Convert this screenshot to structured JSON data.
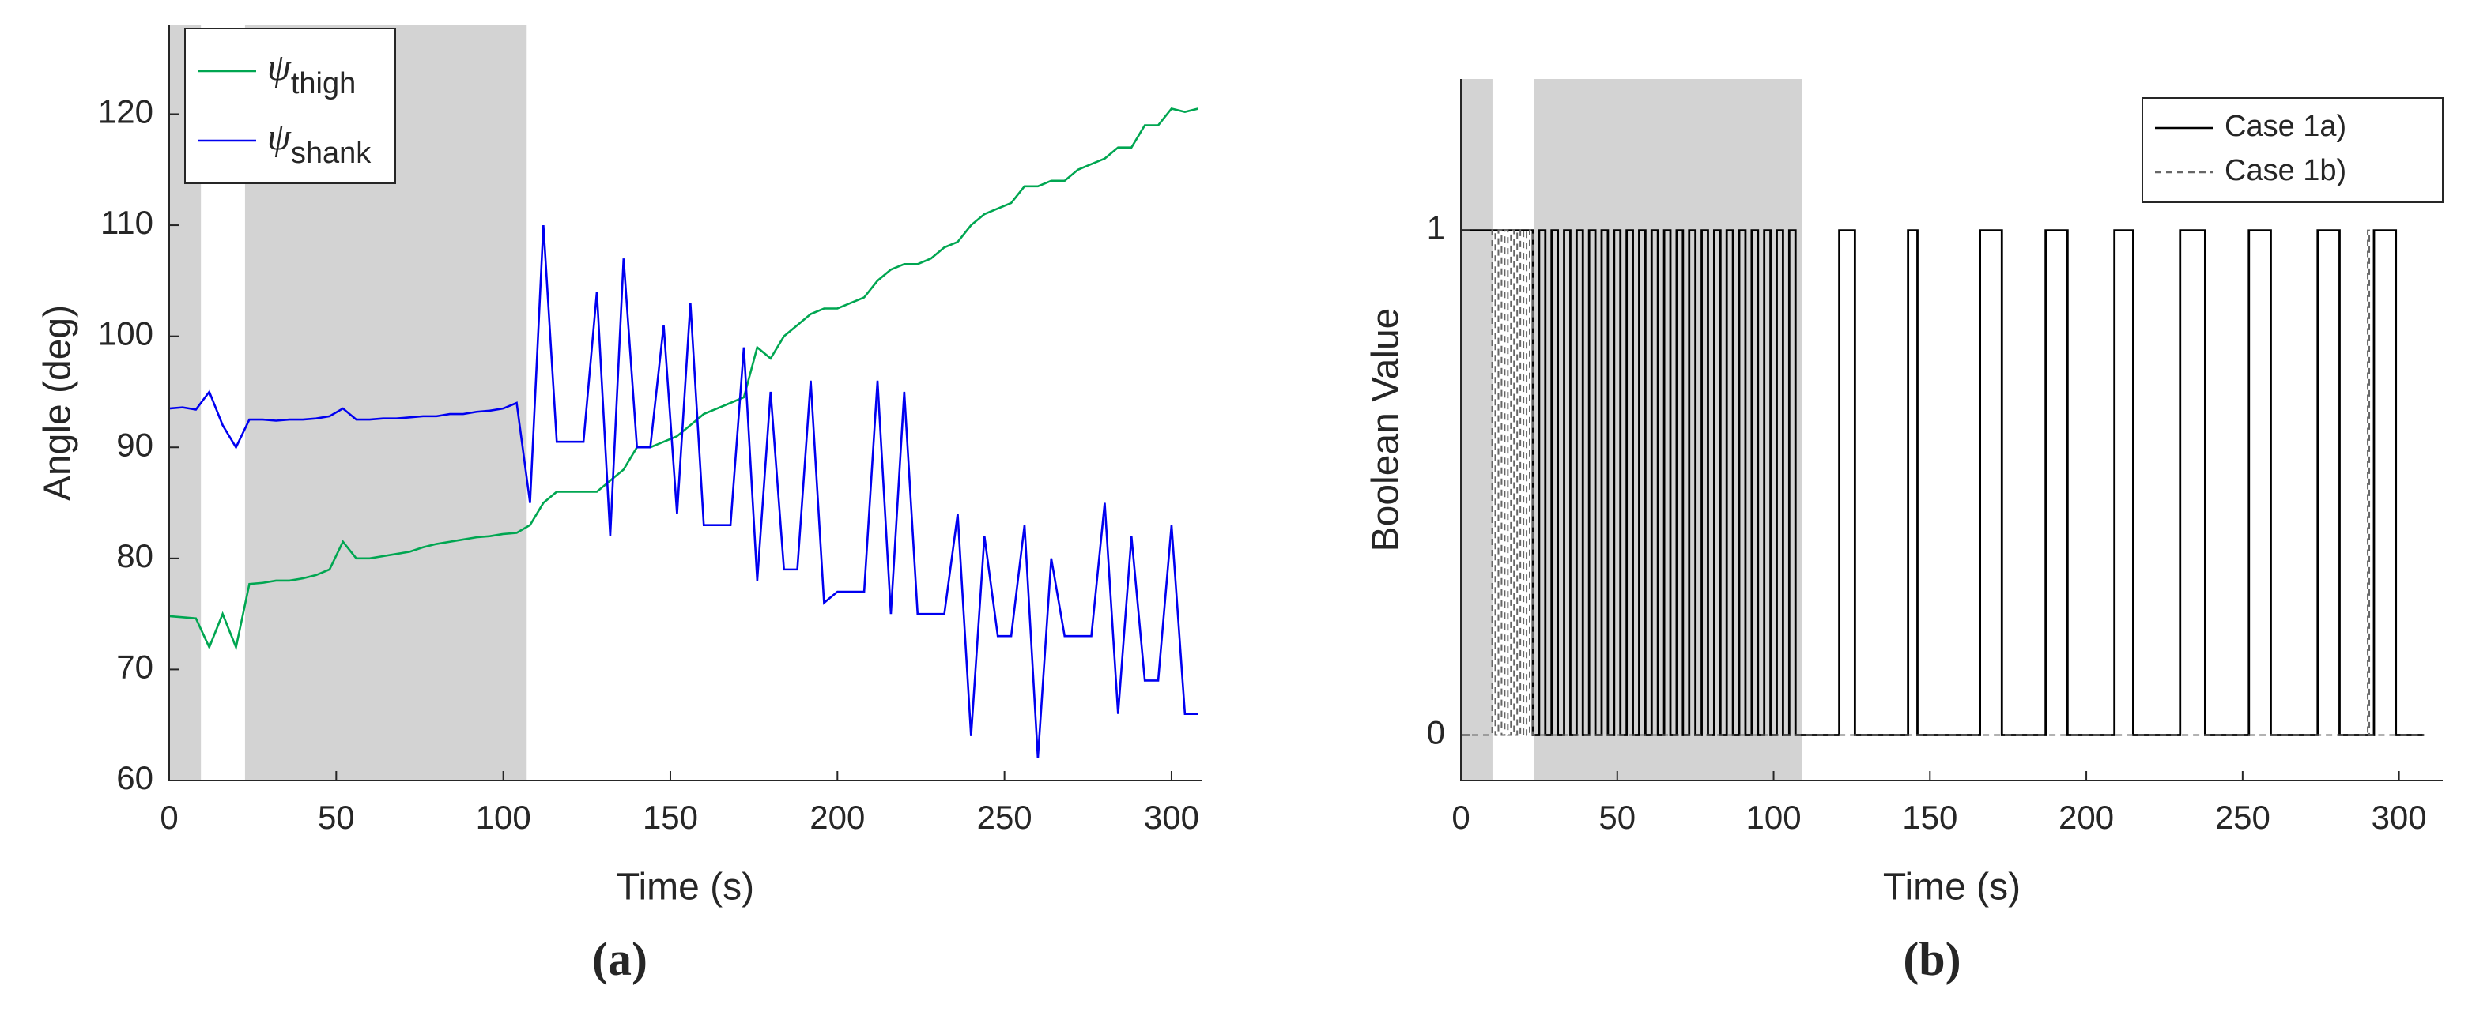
{
  "chart_data": [
    {
      "type": "line",
      "caption": "(a)",
      "xlabel": "Time (s)",
      "ylabel": "Angle (deg)",
      "x": [
        0,
        4,
        8,
        12,
        16,
        20,
        24,
        28,
        32,
        36,
        40,
        44,
        48,
        52,
        56,
        60,
        64,
        68,
        72,
        76,
        80,
        84,
        88,
        92,
        96,
        100,
        104,
        108,
        112,
        116,
        120,
        124,
        128,
        132,
        136,
        140,
        144,
        148,
        152,
        156,
        160,
        164,
        168,
        172,
        176,
        180,
        184,
        188,
        192,
        196,
        200,
        204,
        208,
        212,
        216,
        220,
        224,
        228,
        232,
        236,
        240,
        244,
        248,
        252,
        256,
        260,
        264,
        268,
        272,
        276,
        280,
        284,
        288,
        292,
        296,
        300,
        304,
        308
      ],
      "xlim": [
        0,
        309
      ],
      "xticks": [
        0,
        50,
        100,
        150,
        200,
        250,
        300
      ],
      "ylim": [
        60,
        128
      ],
      "yticks": [
        60,
        70,
        80,
        90,
        100,
        110,
        120
      ],
      "shaded_regions": [
        [
          0,
          9.5
        ],
        [
          22.7,
          107
        ]
      ],
      "shade_color": "#d3d3d3",
      "legend": "upper left",
      "series": [
        {
          "name": "ψthigh",
          "color": "#00a651",
          "values": [
            74.8,
            74.7,
            74.6,
            72,
            75,
            72,
            77.7,
            77.8,
            78,
            78,
            78.2,
            78.5,
            79,
            81.5,
            80,
            80,
            80.2,
            80.4,
            80.6,
            81,
            81.3,
            81.5,
            81.7,
            81.9,
            82,
            82.2,
            82.3,
            83,
            85,
            86,
            86,
            86,
            86,
            87,
            88,
            90,
            90,
            90.5,
            91,
            92,
            93,
            93.5,
            94,
            94.5,
            99,
            98,
            100,
            101,
            102,
            102.5,
            102.5,
            103,
            103.5,
            105,
            106,
            106.5,
            106.5,
            107,
            108,
            108.5,
            110,
            111,
            111.5,
            112,
            113.5,
            113.5,
            114,
            114,
            115,
            115.5,
            116,
            117,
            117,
            119,
            119,
            120.5,
            120.2,
            120.5
          ]
        },
        {
          "name": "ψshank",
          "color": "#0000f0",
          "values": [
            93.5,
            93.6,
            93.4,
            95,
            92,
            90,
            92.5,
            92.5,
            92.4,
            92.5,
            92.5,
            92.6,
            92.8,
            93.5,
            92.5,
            92.5,
            92.6,
            92.6,
            92.7,
            92.8,
            92.8,
            93,
            93,
            93.2,
            93.3,
            93.5,
            94,
            85,
            110,
            90.5,
            90.5,
            90.5,
            104,
            82,
            107,
            90,
            90,
            101,
            84,
            103,
            83,
            83,
            83,
            99,
            78,
            95,
            79,
            79,
            96,
            76,
            77,
            77,
            77,
            96,
            75,
            95,
            75,
            75,
            75,
            84,
            64,
            82,
            73,
            73,
            83,
            62,
            80,
            73,
            73,
            73,
            85,
            66,
            82,
            69,
            69,
            83,
            66,
            66
          ]
        }
      ]
    },
    {
      "type": "step",
      "caption": "(b)",
      "xlabel": "Time (s)",
      "ylabel": "Boolean Value",
      "xlim": [
        0,
        314
      ],
      "xticks": [
        0,
        50,
        100,
        150,
        200,
        250,
        300
      ],
      "ylim": [
        -0.09,
        1.3
      ],
      "yticks": [
        0,
        1
      ],
      "shaded_regions": [
        [
          0,
          10.1
        ],
        [
          23.3,
          109
        ]
      ],
      "shade_color": "#d3d3d3",
      "legend": "upper right",
      "series": [
        {
          "name": "Case 1a)",
          "color": "#000000",
          "dash": false,
          "x": [
            0,
            23,
            25,
            27,
            29,
            31,
            33,
            35,
            37,
            39,
            41,
            43,
            45,
            47,
            49,
            51,
            53,
            55,
            57,
            59,
            61,
            63,
            65,
            67,
            69,
            71,
            73,
            75,
            77,
            79,
            81,
            83,
            85,
            87,
            89,
            91,
            93,
            95,
            97,
            99,
            101,
            103,
            105,
            107,
            121,
            126,
            143,
            146,
            166,
            173,
            187,
            194,
            209,
            215,
            230,
            238,
            252,
            259,
            274,
            281,
            292,
            299,
            308
          ],
          "values": [
            1,
            0,
            1,
            0,
            1,
            0,
            1,
            0,
            1,
            0,
            1,
            0,
            1,
            0,
            1,
            0,
            1,
            0,
            1,
            0,
            1,
            0,
            1,
            0,
            1,
            0,
            1,
            0,
            1,
            0,
            1,
            0,
            1,
            0,
            1,
            0,
            1,
            0,
            1,
            0,
            1,
            0,
            1,
            0,
            1,
            0,
            1,
            0,
            1,
            0,
            1,
            0,
            1,
            0,
            1,
            0,
            1,
            0,
            1,
            0,
            1,
            0,
            0
          ]
        },
        {
          "name": "Case 1b)",
          "color": "#666666",
          "dash": true,
          "x": [
            0,
            10,
            11,
            12,
            13,
            14,
            15,
            16,
            17,
            18,
            19,
            20,
            21,
            22,
            23,
            290,
            290.5,
            308
          ],
          "values": [
            0,
            1,
            0,
            1,
            0,
            1,
            0,
            1,
            0,
            1,
            0,
            1,
            0,
            1,
            0,
            1,
            0,
            0
          ]
        }
      ]
    }
  ]
}
